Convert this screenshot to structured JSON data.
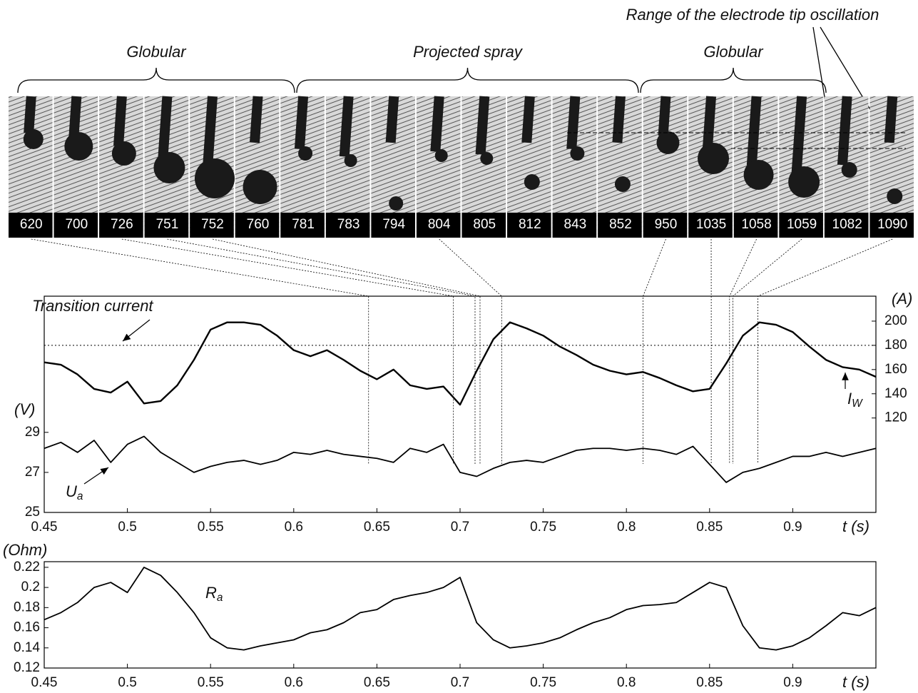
{
  "photo_strip": {
    "annotation": "Range of the electrode tip oscillation",
    "regimes": [
      "Globular",
      "Projected spray",
      "Globular"
    ],
    "frames": [
      {
        "label": "620",
        "t": 0.645
      },
      {
        "label": "700"
      },
      {
        "label": "726",
        "t": 0.696
      },
      {
        "label": "751",
        "t": 0.709
      },
      {
        "label": "752",
        "t": 0.712
      },
      {
        "label": "760"
      },
      {
        "label": "781"
      },
      {
        "label": "783"
      },
      {
        "label": "794"
      },
      {
        "label": "804",
        "t": 0.725
      },
      {
        "label": "805"
      },
      {
        "label": "812"
      },
      {
        "label": "843"
      },
      {
        "label": "852"
      },
      {
        "label": "950",
        "t": 0.81
      },
      {
        "label": "1035",
        "t": 0.851
      },
      {
        "label": "1058",
        "t": 0.862
      },
      {
        "label": "1059",
        "t": 0.864
      },
      {
        "label": "1082"
      },
      {
        "label": "1090",
        "t": 0.879
      }
    ]
  },
  "chart_data": [
    {
      "type": "line",
      "x": [
        0.45,
        0.46,
        0.47,
        0.48,
        0.49,
        0.5,
        0.51,
        0.52,
        0.53,
        0.54,
        0.55,
        0.56,
        0.57,
        0.58,
        0.59,
        0.6,
        0.61,
        0.62,
        0.63,
        0.64,
        0.65,
        0.66,
        0.67,
        0.68,
        0.69,
        0.7,
        0.71,
        0.72,
        0.73,
        0.74,
        0.75,
        0.76,
        0.77,
        0.78,
        0.79,
        0.8,
        0.81,
        0.82,
        0.83,
        0.84,
        0.85,
        0.86,
        0.87,
        0.88,
        0.89,
        0.9,
        0.91,
        0.92,
        0.93,
        0.94,
        0.95
      ],
      "xlim": [
        0.45,
        0.95
      ],
      "xticks": [
        0.45,
        0.5,
        0.55,
        0.6,
        0.65,
        0.7,
        0.75,
        0.8,
        0.85,
        0.9
      ],
      "x_label": "t (s)",
      "y_label": "(V)",
      "ylim": [
        25,
        35.8
      ],
      "yticks": [
        25,
        27,
        29
      ],
      "y2_label": "(A)",
      "y2lim": [
        42,
        220.6
      ],
      "y2ticks": [
        120,
        140,
        160,
        180,
        200
      ],
      "transition_current": 180,
      "transition_label": "Transition current",
      "series": [
        {
          "name": "I",
          "name_sub": "W",
          "axis": "y2",
          "color": "#000000",
          "values": [
            166,
            164,
            156,
            144,
            141,
            150,
            132,
            134,
            147,
            168,
            193,
            199,
            199,
            197,
            188,
            176,
            171,
            176,
            168,
            159,
            152,
            160,
            147,
            144,
            146,
            131,
            159,
            185,
            199,
            194,
            188,
            179,
            172,
            164,
            159,
            156,
            158,
            153,
            147,
            142,
            144,
            165,
            188,
            199,
            197,
            191,
            179,
            168,
            162,
            160,
            154
          ]
        },
        {
          "name": "U",
          "name_sub": "a",
          "axis": "y",
          "color": "#000000",
          "values": [
            28.2,
            28.5,
            28.0,
            28.6,
            27.5,
            28.4,
            28.8,
            28.0,
            27.5,
            27.0,
            27.3,
            27.5,
            27.6,
            27.4,
            27.6,
            28.0,
            27.9,
            28.1,
            27.9,
            27.8,
            27.7,
            27.5,
            28.2,
            28.0,
            28.4,
            27.0,
            26.8,
            27.2,
            27.5,
            27.6,
            27.5,
            27.8,
            28.1,
            28.2,
            28.2,
            28.1,
            28.2,
            28.1,
            27.9,
            28.3,
            27.4,
            26.5,
            27.0,
            27.2,
            27.5,
            27.8,
            27.8,
            28.0,
            27.8,
            28.0,
            28.2
          ]
        }
      ]
    },
    {
      "type": "line",
      "x": [
        0.45,
        0.46,
        0.47,
        0.48,
        0.49,
        0.5,
        0.51,
        0.52,
        0.53,
        0.54,
        0.55,
        0.56,
        0.57,
        0.58,
        0.59,
        0.6,
        0.61,
        0.62,
        0.63,
        0.64,
        0.65,
        0.66,
        0.67,
        0.68,
        0.69,
        0.7,
        0.71,
        0.72,
        0.73,
        0.74,
        0.75,
        0.76,
        0.77,
        0.78,
        0.79,
        0.8,
        0.81,
        0.82,
        0.83,
        0.84,
        0.85,
        0.86,
        0.87,
        0.88,
        0.89,
        0.9,
        0.91,
        0.92,
        0.93,
        0.94,
        0.95
      ],
      "xlim": [
        0.45,
        0.95
      ],
      "xticks": [
        0.45,
        0.5,
        0.55,
        0.6,
        0.65,
        0.7,
        0.75,
        0.8,
        0.85,
        0.9
      ],
      "x_label": "t (s)",
      "y_label": "(Ohm)",
      "ylim": [
        0.12,
        0.2256
      ],
      "yticks": [
        0.12,
        0.14,
        0.16,
        0.18,
        0.2,
        0.22
      ],
      "series": [
        {
          "name": "R",
          "name_sub": "a",
          "color": "#000000",
          "values": [
            0.168,
            0.175,
            0.185,
            0.2,
            0.205,
            0.195,
            0.22,
            0.212,
            0.195,
            0.175,
            0.15,
            0.14,
            0.138,
            0.142,
            0.145,
            0.148,
            0.155,
            0.158,
            0.165,
            0.175,
            0.178,
            0.188,
            0.192,
            0.195,
            0.2,
            0.21,
            0.165,
            0.148,
            0.14,
            0.142,
            0.145,
            0.15,
            0.158,
            0.165,
            0.17,
            0.178,
            0.182,
            0.183,
            0.185,
            0.195,
            0.205,
            0.2,
            0.162,
            0.14,
            0.138,
            0.142,
            0.15,
            0.162,
            0.175,
            0.172,
            0.18
          ]
        }
      ]
    }
  ]
}
